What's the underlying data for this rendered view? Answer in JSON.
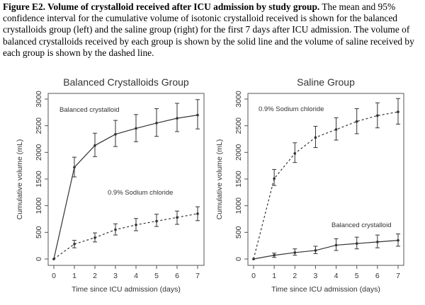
{
  "caption": {
    "label": "Figure E2.  Volume of crystalloid received after ICU admission by study group.",
    "text": " The mean and 95% confidence interval for the cumulative volume of isotonic crystalloid received is shown for the balanced crystalloids group (left) and the saline group (right) for the first 7 days after ICU admission.  The volume of balanced crystalloids received by each group is shown by the solid line and the volume of saline received by each group is shown by the dashed line."
  },
  "chart_data": [
    {
      "type": "line",
      "title": "Balanced Crystalloids Group",
      "xlabel": "Time since ICU admission (days)",
      "ylabel": "Cumulative volume (mL)",
      "xlim": [
        0,
        7
      ],
      "ylim": [
        0,
        3000
      ],
      "xticks": [
        "0",
        "1",
        "2",
        "3",
        "4",
        "5",
        "6",
        "7"
      ],
      "yticks": [
        "0",
        "500",
        "1000",
        "1500",
        "2000",
        "2500",
        "3000"
      ],
      "grid": false,
      "x": [
        0,
        1,
        2,
        3,
        4,
        5,
        6,
        7
      ],
      "series": [
        {
          "name": "Balanced crystalloid",
          "style": "solid",
          "values": [
            0,
            1720,
            2130,
            2340,
            2450,
            2550,
            2640,
            2700
          ],
          "lower": [
            0,
            1540,
            1920,
            2110,
            2200,
            2300,
            2390,
            2440
          ],
          "upper": [
            0,
            1910,
            2360,
            2600,
            2710,
            2820,
            2920,
            2990
          ]
        },
        {
          "name": "0.9% Sodium chloride",
          "style": "dashed",
          "values": [
            0,
            280,
            400,
            550,
            640,
            710,
            780,
            850
          ],
          "lower": [
            0,
            210,
            320,
            450,
            530,
            610,
            650,
            720
          ],
          "upper": [
            0,
            350,
            490,
            660,
            760,
            840,
            900,
            980
          ]
        }
      ]
    },
    {
      "type": "line",
      "title": "Saline Group",
      "xlabel": "Time since ICU admission (days)",
      "ylabel": "Cumulative volume (mL)",
      "xlim": [
        0,
        7
      ],
      "ylim": [
        0,
        3000
      ],
      "xticks": [
        "0",
        "1",
        "2",
        "3",
        "4",
        "5",
        "6",
        "7"
      ],
      "yticks": [
        "0",
        "500",
        "1000",
        "1500",
        "2000",
        "2500",
        "3000"
      ],
      "grid": false,
      "x": [
        0,
        1,
        2,
        3,
        4,
        5,
        6,
        7
      ],
      "series": [
        {
          "name": "0.9% Sodium chloride",
          "style": "dashed",
          "values": [
            0,
            1510,
            1980,
            2280,
            2430,
            2580,
            2690,
            2760
          ],
          "lower": [
            0,
            1380,
            1810,
            2090,
            2230,
            2350,
            2460,
            2530
          ],
          "upper": [
            0,
            1680,
            2180,
            2490,
            2650,
            2820,
            2930,
            3010
          ]
        },
        {
          "name": "Balanced crystalloid",
          "style": "solid",
          "values": [
            0,
            70,
            120,
            160,
            260,
            290,
            320,
            350
          ],
          "lower": [
            0,
            30,
            70,
            100,
            160,
            190,
            210,
            240
          ],
          "upper": [
            0,
            110,
            190,
            240,
            380,
            410,
            450,
            470
          ]
        }
      ]
    }
  ]
}
